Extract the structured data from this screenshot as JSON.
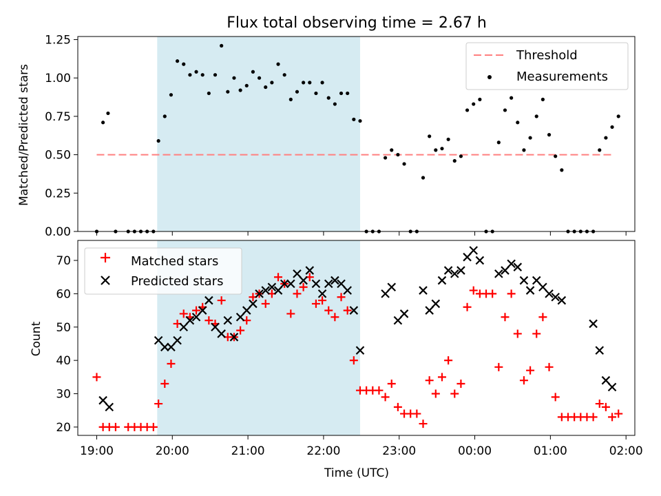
{
  "chart_data": [
    {
      "type": "scatter",
      "title": "Flux total observing time = 2.67 h",
      "xlabel": "",
      "ylabel": "Matched/Predicted stars",
      "ylim": [
        0,
        1.27
      ],
      "xlim": [
        "18:45",
        "02:07"
      ],
      "yticks": [
        "0.00",
        "0.25",
        "0.50",
        "0.75",
        "1.00",
        "1.25"
      ],
      "shaded_interval": [
        "19:48",
        "22:29"
      ],
      "shade_color": "#add8e6",
      "threshold": {
        "name": "Threshold",
        "value": 0.5,
        "from": "19:00",
        "to": "01:50",
        "color": "#ff7f7f",
        "style": "dashed"
      },
      "legend": {
        "placement": "top-right",
        "entries": [
          "Threshold",
          "Measurements"
        ]
      },
      "series": [
        {
          "name": "Measurements",
          "marker": "dot",
          "color": "#000000",
          "points": [
            [
              "19:00",
              0.0
            ],
            [
              "19:05",
              0.71
            ],
            [
              "19:09",
              0.77
            ],
            [
              "19:15",
              0.0
            ],
            [
              "19:25",
              0.0
            ],
            [
              "19:30",
              0.0
            ],
            [
              "19:35",
              0.0
            ],
            [
              "19:40",
              0.0
            ],
            [
              "19:45",
              0.0
            ],
            [
              "19:49",
              0.59
            ],
            [
              "19:54",
              0.75
            ],
            [
              "19:59",
              0.89
            ],
            [
              "20:04",
              1.11
            ],
            [
              "20:09",
              1.09
            ],
            [
              "20:14",
              1.02
            ],
            [
              "20:19",
              1.04
            ],
            [
              "20:24",
              1.02
            ],
            [
              "20:29",
              0.9
            ],
            [
              "20:34",
              1.02
            ],
            [
              "20:39",
              1.21
            ],
            [
              "20:44",
              0.91
            ],
            [
              "20:49",
              1.0
            ],
            [
              "20:54",
              0.92
            ],
            [
              "20:59",
              0.95
            ],
            [
              "21:04",
              1.04
            ],
            [
              "21:09",
              1.0
            ],
            [
              "21:14",
              0.94
            ],
            [
              "21:19",
              0.97
            ],
            [
              "21:24",
              1.09
            ],
            [
              "21:29",
              1.02
            ],
            [
              "21:34",
              0.86
            ],
            [
              "21:39",
              0.91
            ],
            [
              "21:44",
              0.97
            ],
            [
              "21:49",
              0.97
            ],
            [
              "21:54",
              0.9
            ],
            [
              "21:59",
              0.97
            ],
            [
              "22:04",
              0.87
            ],
            [
              "22:09",
              0.83
            ],
            [
              "22:14",
              0.9
            ],
            [
              "22:19",
              0.9
            ],
            [
              "22:24",
              0.73
            ],
            [
              "22:29",
              0.72
            ],
            [
              "22:34",
              0.0
            ],
            [
              "22:39",
              0.0
            ],
            [
              "22:44",
              0.0
            ],
            [
              "22:49",
              0.48
            ],
            [
              "22:54",
              0.53
            ],
            [
              "22:59",
              0.5
            ],
            [
              "23:04",
              0.44
            ],
            [
              "23:09",
              0.0
            ],
            [
              "23:14",
              0.0
            ],
            [
              "23:19",
              0.35
            ],
            [
              "23:24",
              0.62
            ],
            [
              "23:29",
              0.53
            ],
            [
              "23:34",
              0.54
            ],
            [
              "23:39",
              0.6
            ],
            [
              "23:44",
              0.46
            ],
            [
              "23:49",
              0.49
            ],
            [
              "23:54",
              0.79
            ],
            [
              "23:59",
              0.83
            ],
            [
              "00:04",
              0.86
            ],
            [
              "00:09",
              0.0
            ],
            [
              "00:14",
              0.0
            ],
            [
              "00:19",
              0.58
            ],
            [
              "00:24",
              0.79
            ],
            [
              "00:29",
              0.87
            ],
            [
              "00:34",
              0.71
            ],
            [
              "00:39",
              0.53
            ],
            [
              "00:44",
              0.61
            ],
            [
              "00:49",
              0.75
            ],
            [
              "00:54",
              0.86
            ],
            [
              "00:59",
              0.63
            ],
            [
              "01:04",
              0.49
            ],
            [
              "01:09",
              0.4
            ],
            [
              "01:14",
              0.0
            ],
            [
              "01:19",
              0.0
            ],
            [
              "01:24",
              0.0
            ],
            [
              "01:29",
              0.0
            ],
            [
              "01:34",
              0.0
            ],
            [
              "01:39",
              0.53
            ],
            [
              "01:44",
              0.61
            ],
            [
              "01:49",
              0.68
            ],
            [
              "01:54",
              0.75
            ]
          ]
        }
      ]
    },
    {
      "type": "scatter",
      "title": "",
      "xlabel": "Time (UTC)",
      "ylabel": "Count",
      "ylim": [
        17.5,
        76
      ],
      "xlim": [
        "18:45",
        "02:07"
      ],
      "yticks": [
        "20",
        "30",
        "40",
        "50",
        "60",
        "70"
      ],
      "xticks": [
        "19:00",
        "20:00",
        "21:00",
        "22:00",
        "23:00",
        "00:00",
        "01:00",
        "02:00"
      ],
      "shaded_interval": [
        "19:48",
        "22:29"
      ],
      "shade_color": "#add8e6",
      "legend": {
        "placement": "top-left",
        "entries": [
          "Matched stars",
          "Predicted stars"
        ]
      },
      "series": [
        {
          "name": "Matched stars",
          "marker": "plus",
          "color": "#ff0000",
          "points": [
            [
              "19:00",
              35
            ],
            [
              "19:05",
              20
            ],
            [
              "19:10",
              20
            ],
            [
              "19:15",
              20
            ],
            [
              "19:25",
              20
            ],
            [
              "19:30",
              20
            ],
            [
              "19:35",
              20
            ],
            [
              "19:40",
              20
            ],
            [
              "19:45",
              20
            ],
            [
              "19:49",
              27
            ],
            [
              "19:54",
              33
            ],
            [
              "19:59",
              39
            ],
            [
              "20:04",
              51
            ],
            [
              "20:09",
              54
            ],
            [
              "20:14",
              53
            ],
            [
              "20:19",
              55
            ],
            [
              "20:24",
              56
            ],
            [
              "20:29",
              52
            ],
            [
              "20:34",
              51
            ],
            [
              "20:39",
              58
            ],
            [
              "20:44",
              47
            ],
            [
              "20:49",
              47
            ],
            [
              "20:54",
              49
            ],
            [
              "20:59",
              52
            ],
            [
              "21:04",
              59
            ],
            [
              "21:09",
              60
            ],
            [
              "21:14",
              57
            ],
            [
              "21:19",
              60
            ],
            [
              "21:24",
              65
            ],
            [
              "21:29",
              63
            ],
            [
              "21:34",
              54
            ],
            [
              "21:39",
              60
            ],
            [
              "21:44",
              62
            ],
            [
              "21:49",
              65
            ],
            [
              "21:54",
              57
            ],
            [
              "21:59",
              58
            ],
            [
              "22:04",
              55
            ],
            [
              "22:09",
              53
            ],
            [
              "22:14",
              59
            ],
            [
              "22:19",
              55
            ],
            [
              "22:24",
              40
            ],
            [
              "22:29",
              31
            ],
            [
              "22:34",
              31
            ],
            [
              "22:39",
              31
            ],
            [
              "22:44",
              31
            ],
            [
              "22:49",
              29
            ],
            [
              "22:54",
              33
            ],
            [
              "22:59",
              26
            ],
            [
              "23:04",
              24
            ],
            [
              "23:09",
              24
            ],
            [
              "23:14",
              24
            ],
            [
              "23:19",
              21
            ],
            [
              "23:24",
              34
            ],
            [
              "23:29",
              30
            ],
            [
              "23:34",
              35
            ],
            [
              "23:39",
              40
            ],
            [
              "23:44",
              30
            ],
            [
              "23:49",
              33
            ],
            [
              "23:54",
              56
            ],
            [
              "23:59",
              61
            ],
            [
              "00:04",
              60
            ],
            [
              "00:09",
              60
            ],
            [
              "00:14",
              60
            ],
            [
              "00:19",
              38
            ],
            [
              "00:24",
              53
            ],
            [
              "00:29",
              60
            ],
            [
              "00:34",
              48
            ],
            [
              "00:39",
              34
            ],
            [
              "00:44",
              37
            ],
            [
              "00:49",
              48
            ],
            [
              "00:54",
              53
            ],
            [
              "00:59",
              38
            ],
            [
              "01:04",
              29
            ],
            [
              "01:09",
              23
            ],
            [
              "01:14",
              23
            ],
            [
              "01:19",
              23
            ],
            [
              "01:24",
              23
            ],
            [
              "01:29",
              23
            ],
            [
              "01:34",
              23
            ],
            [
              "01:39",
              27
            ],
            [
              "01:44",
              26
            ],
            [
              "01:49",
              23
            ],
            [
              "01:54",
              24
            ]
          ]
        },
        {
          "name": "Predicted stars",
          "marker": "x",
          "color": "#000000",
          "points": [
            [
              "19:05",
              28
            ],
            [
              "19:10",
              26
            ],
            [
              "19:49",
              46
            ],
            [
              "19:54",
              44
            ],
            [
              "19:59",
              44
            ],
            [
              "20:04",
              46
            ],
            [
              "20:09",
              50
            ],
            [
              "20:14",
              52
            ],
            [
              "20:19",
              53
            ],
            [
              "20:24",
              55
            ],
            [
              "20:29",
              58
            ],
            [
              "20:34",
              50
            ],
            [
              "20:39",
              48
            ],
            [
              "20:44",
              52
            ],
            [
              "20:49",
              47
            ],
            [
              "20:54",
              53
            ],
            [
              "20:59",
              55
            ],
            [
              "21:04",
              57
            ],
            [
              "21:09",
              60
            ],
            [
              "21:14",
              61
            ],
            [
              "21:19",
              62
            ],
            [
              "21:24",
              61
            ],
            [
              "21:29",
              63
            ],
            [
              "21:34",
              63
            ],
            [
              "21:39",
              66
            ],
            [
              "21:44",
              64
            ],
            [
              "21:49",
              67
            ],
            [
              "21:54",
              63
            ],
            [
              "21:59",
              60
            ],
            [
              "22:04",
              63
            ],
            [
              "22:09",
              64
            ],
            [
              "22:14",
              63
            ],
            [
              "22:19",
              61
            ],
            [
              "22:24",
              55
            ],
            [
              "22:29",
              43
            ],
            [
              "22:49",
              60
            ],
            [
              "22:54",
              62
            ],
            [
              "22:59",
              52
            ],
            [
              "23:04",
              54
            ],
            [
              "23:19",
              61
            ],
            [
              "23:24",
              55
            ],
            [
              "23:29",
              57
            ],
            [
              "23:34",
              64
            ],
            [
              "23:39",
              67
            ],
            [
              "23:44",
              66
            ],
            [
              "23:49",
              67
            ],
            [
              "23:54",
              71
            ],
            [
              "23:59",
              73
            ],
            [
              "00:04",
              70
            ],
            [
              "00:19",
              66
            ],
            [
              "00:24",
              67
            ],
            [
              "00:29",
              69
            ],
            [
              "00:34",
              68
            ],
            [
              "00:39",
              64
            ],
            [
              "00:44",
              61
            ],
            [
              "00:49",
              64
            ],
            [
              "00:54",
              62
            ],
            [
              "00:59",
              60
            ],
            [
              "01:04",
              59
            ],
            [
              "01:09",
              58
            ],
            [
              "01:34",
              51
            ],
            [
              "01:39",
              43
            ],
            [
              "01:44",
              34
            ],
            [
              "01:49",
              32
            ]
          ]
        }
      ]
    }
  ]
}
